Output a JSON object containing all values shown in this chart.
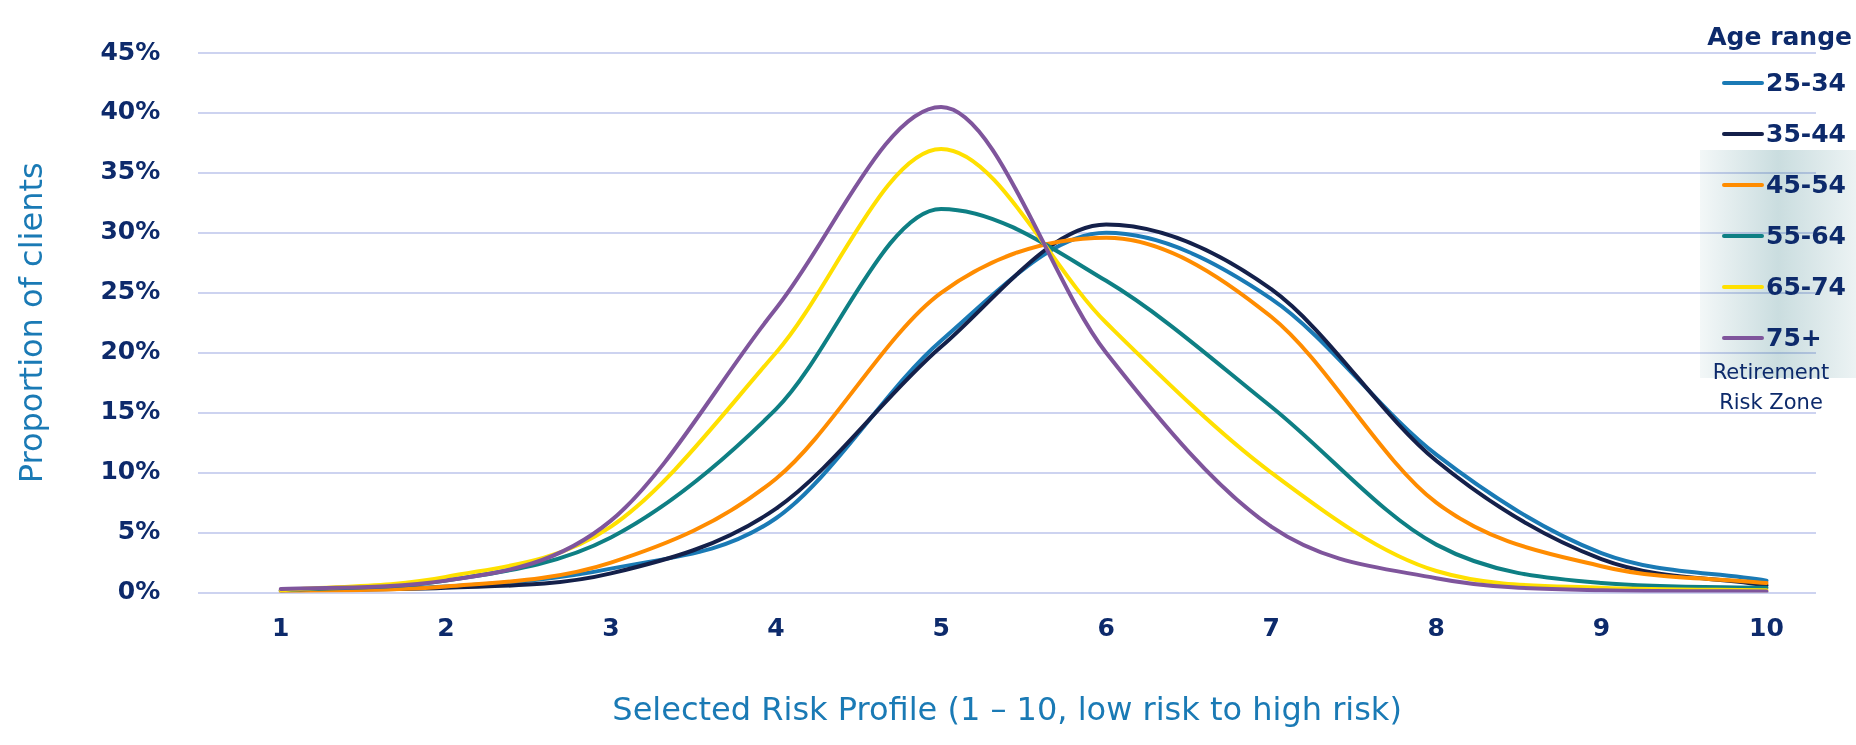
{
  "chart_data": {
    "type": "line",
    "xlabel": "Selected Risk Profile (1 – 10, low risk to high risk)",
    "ylabel": "Proportion of clients",
    "legend_title": "Age range",
    "legend": "top right",
    "grid": "y",
    "marker": "none",
    "line_style": "solid",
    "x": [
      1,
      2,
      3,
      4,
      5,
      6,
      7,
      8,
      9,
      10
    ],
    "xlim": [
      0.5,
      10.3
    ],
    "xticks": [
      1,
      2,
      3,
      4,
      5,
      6,
      7,
      8,
      9,
      10
    ],
    "ylim": [
      0,
      45
    ],
    "yticks": [
      {
        "value": 0,
        "label": "0%"
      },
      {
        "value": 5,
        "label": "5%"
      },
      {
        "value": 10,
        "label": "10%"
      },
      {
        "value": 15,
        "label": "15%"
      },
      {
        "value": 20,
        "label": "20%"
      },
      {
        "value": 25,
        "label": "25%"
      },
      {
        "value": 30,
        "label": "30%"
      },
      {
        "value": 35,
        "label": "35%"
      },
      {
        "value": 40,
        "label": "40%"
      },
      {
        "value": 45,
        "label": "45%"
      }
    ],
    "annotations": [
      "Retirement Risk Zone"
    ],
    "series": [
      {
        "name": "25-34",
        "color": "#1a7ab5",
        "values": [
          0.2,
          0.5,
          2.0,
          6.2,
          21,
          30,
          24.5,
          11.5,
          3.3,
          1.0
        ]
      },
      {
        "name": "35-44",
        "color": "#14204a",
        "values": [
          0.2,
          0.4,
          1.6,
          7.0,
          20.5,
          30.7,
          25.3,
          11,
          2.8,
          0.6
        ]
      },
      {
        "name": "45-54",
        "color": "#ff8c00",
        "values": [
          0.1,
          0.5,
          2.5,
          9.5,
          25,
          29.6,
          23,
          7.5,
          2.2,
          0.8
        ]
      },
      {
        "name": "55-64",
        "color": "#0e7f84",
        "values": [
          0.2,
          1.0,
          4.6,
          15.3,
          32,
          26,
          15.5,
          4.0,
          0.8,
          0.4
        ]
      },
      {
        "name": "65-74",
        "color": "#ffe000",
        "values": [
          0.2,
          1.3,
          5.5,
          20,
          37,
          22.5,
          10,
          1.8,
          0.4,
          0.2
        ]
      },
      {
        "name": "75+",
        "color": "#7f559c",
        "values": [
          0.3,
          1.0,
          6.0,
          23.7,
          40.5,
          20,
          5.5,
          1.2,
          0.2,
          0.1
        ]
      }
    ]
  }
}
